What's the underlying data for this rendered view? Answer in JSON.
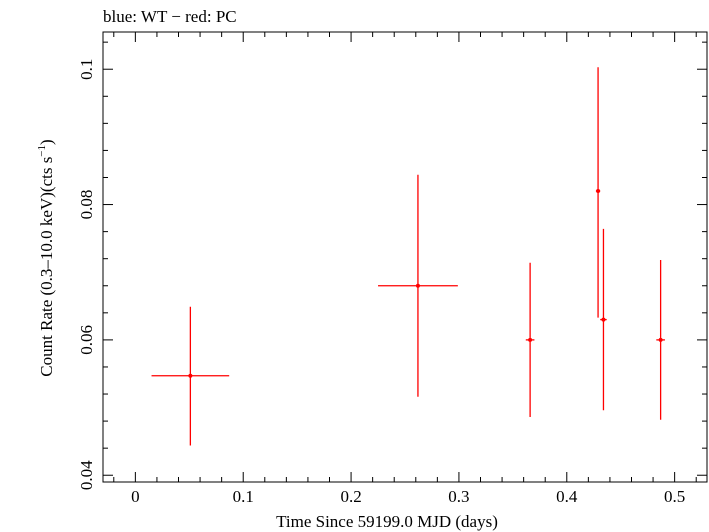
{
  "chart_data": {
    "type": "scatter",
    "title": "blue: WT − red: PC",
    "xlabel": "Time Since 59199.0 MJD (days)",
    "ylabel_main": "Count Rate (0.3–10.0 keV)(cts s",
    "ylabel_sup": "−1",
    "ylabel_close": ")",
    "xlim": [
      -0.03,
      0.53
    ],
    "ylim": [
      0.039,
      0.1055
    ],
    "xticks": [
      0,
      0.1,
      0.2,
      0.3,
      0.4,
      0.5
    ],
    "xtick_labels": [
      "0",
      "0.1",
      "0.2",
      "0.3",
      "0.4",
      "0.5"
    ],
    "yticks": [
      0.04,
      0.06,
      0.08,
      0.1
    ],
    "ytick_labels": [
      "0.04",
      "0.06",
      "0.08",
      "0.1"
    ],
    "grid": false,
    "series": [
      {
        "color": "#ff0000",
        "points": [
          {
            "x": 0.051,
            "xerr": 0.036,
            "y": 0.0547,
            "yerr_low": 0.0103,
            "yerr_high": 0.0102
          },
          {
            "x": 0.262,
            "xerr": 0.037,
            "y": 0.068,
            "yerr_low": 0.0164,
            "yerr_high": 0.0164
          },
          {
            "x": 0.366,
            "xerr": 0.004,
            "y": 0.06,
            "yerr_low": 0.0114,
            "yerr_high": 0.0114
          },
          {
            "x": 0.429,
            "xerr": 0.002,
            "y": 0.082,
            "yerr_low": 0.0187,
            "yerr_high": 0.0183
          },
          {
            "x": 0.434,
            "xerr": 0.003,
            "y": 0.063,
            "yerr_low": 0.0134,
            "yerr_high": 0.0134
          },
          {
            "x": 0.487,
            "xerr": 0.004,
            "y": 0.06,
            "yerr_low": 0.0118,
            "yerr_high": 0.0118
          }
        ]
      }
    ]
  }
}
